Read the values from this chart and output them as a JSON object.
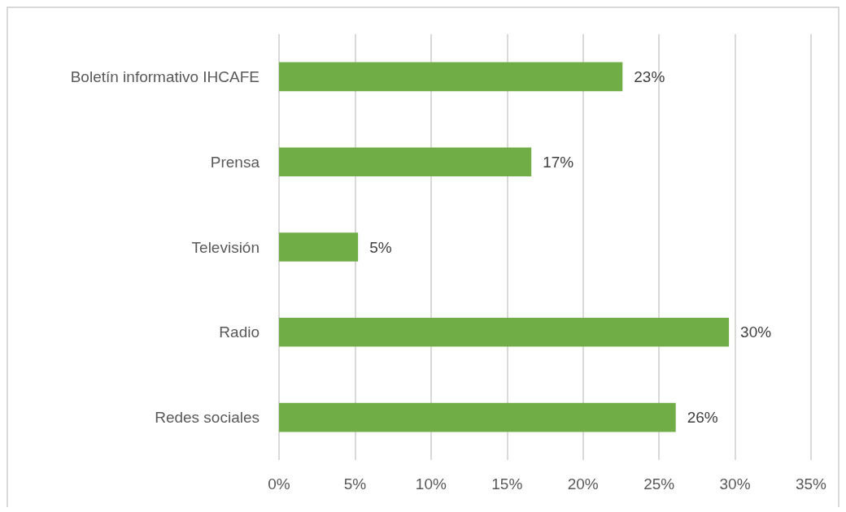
{
  "chart_data": {
    "type": "bar",
    "orientation": "horizontal",
    "categories": [
      "Boletín informativo IHCAFE",
      "Prensa",
      "Televisión",
      "Radio",
      "Redes sociales"
    ],
    "values": [
      22.6,
      16.6,
      5.2,
      29.6,
      26.1
    ],
    "value_labels": [
      "23%",
      "17%",
      "5%",
      "30%",
      "26%"
    ],
    "color": "#70ad47",
    "xlim": [
      0,
      35
    ],
    "xticks": [
      {
        "value": 0,
        "label": "0%"
      },
      {
        "value": 5,
        "label": "5%"
      },
      {
        "value": 10,
        "label": "10%"
      },
      {
        "value": 15,
        "label": "15%"
      },
      {
        "value": 20,
        "label": "20%"
      },
      {
        "value": 25,
        "label": "25%"
      },
      {
        "value": 30,
        "label": "30%"
      },
      {
        "value": 35,
        "label": "35%"
      }
    ],
    "grid": "x"
  }
}
